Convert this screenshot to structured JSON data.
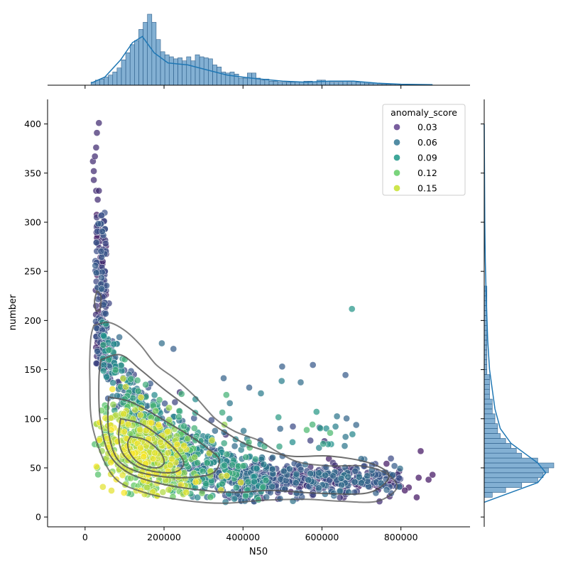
{
  "chart_data": {
    "type": "scatter",
    "title": "",
    "xlabel": "N50",
    "ylabel": "number",
    "xlim": [
      -95000,
      975000
    ],
    "ylim": [
      -10,
      425
    ],
    "x_ticks": [
      0,
      200000,
      400000,
      600000,
      800000
    ],
    "x_tick_labels": [
      "0",
      "200000",
      "400000",
      "600000",
      "800000"
    ],
    "y_ticks": [
      0,
      50,
      100,
      150,
      200,
      250,
      300,
      350,
      400
    ],
    "y_tick_labels": [
      "0",
      "50",
      "100",
      "150",
      "200",
      "250",
      "300",
      "350",
      "400"
    ],
    "grid": false,
    "legend": {
      "title": "anomaly_score",
      "placement": "upper right",
      "entries": [
        {
          "label": "0.03",
          "value": 0.03,
          "color": "#6a4c93"
        },
        {
          "label": "0.06",
          "value": 0.06,
          "color": "#3f7f9a"
        },
        {
          "label": "0.09",
          "value": 0.09,
          "color": "#2a9d8f"
        },
        {
          "label": "0.12",
          "value": 0.12,
          "color": "#6ccf6e"
        },
        {
          "label": "0.15",
          "value": 0.15,
          "color": "#c9e33a"
        }
      ]
    },
    "colormap": "viridis",
    "hist_color": "#4f8fc0",
    "kde_line_color": "#1f77b4",
    "contour_color": "#555555",
    "marginal_x": {
      "bin_width": 11000,
      "bins_start": 15000,
      "counts": [
        3,
        5,
        6,
        8,
        10,
        13,
        17,
        25,
        32,
        40,
        44,
        55,
        62,
        70,
        62,
        45,
        33,
        30,
        28,
        26,
        27,
        24,
        28,
        24,
        30,
        28,
        27,
        26,
        20,
        18,
        13,
        12,
        13,
        11,
        7,
        7,
        12,
        12,
        7,
        5,
        6,
        4,
        4,
        3,
        3,
        3,
        3,
        3,
        3,
        4,
        4,
        3,
        5,
        5,
        4,
        3,
        3,
        3,
        4,
        3,
        4,
        3,
        3,
        2,
        2,
        2,
        1,
        1,
        1,
        1,
        1,
        1,
        1
      ],
      "kde": [
        [
          15000,
          2
        ],
        [
          50000,
          8
        ],
        [
          90000,
          25
        ],
        [
          120000,
          42
        ],
        [
          145000,
          48
        ],
        [
          175000,
          32
        ],
        [
          210000,
          22
        ],
        [
          260000,
          20
        ],
        [
          310000,
          15
        ],
        [
          360000,
          10
        ],
        [
          420000,
          7
        ],
        [
          500000,
          4
        ],
        [
          560000,
          3
        ],
        [
          620000,
          4
        ],
        [
          680000,
          4
        ],
        [
          740000,
          2
        ],
        [
          800000,
          1
        ],
        [
          880000,
          0.5
        ]
      ]
    },
    "marginal_y": {
      "bin_width": 5,
      "bins_start": 15,
      "counts": [
        0,
        3,
        8,
        14,
        20,
        22,
        24,
        26,
        20,
        14,
        12,
        10,
        8,
        6,
        5,
        5,
        4,
        4,
        3,
        3,
        3,
        2,
        2,
        2,
        2,
        2,
        1,
        1,
        1,
        1,
        1,
        1,
        1,
        1,
        1,
        1,
        1,
        1,
        1,
        1,
        1,
        1,
        1,
        1,
        0,
        0,
        0,
        0,
        0,
        0,
        0,
        0
      ],
      "kde": [
        [
          15,
          0
        ],
        [
          25,
          10
        ],
        [
          35,
          20
        ],
        [
          45,
          23
        ],
        [
          55,
          20
        ],
        [
          65,
          15
        ],
        [
          75,
          10
        ],
        [
          90,
          6
        ],
        [
          110,
          4
        ],
        [
          130,
          3
        ],
        [
          150,
          2
        ],
        [
          180,
          1.3
        ],
        [
          220,
          0.8
        ],
        [
          260,
          0.4
        ],
        [
          300,
          0.2
        ],
        [
          350,
          0.1
        ],
        [
          400,
          0
        ]
      ]
    },
    "contours": [
      [
        [
          22000,
          195
        ],
        [
          60000,
          198
        ],
        [
          100000,
          190
        ],
        [
          140000,
          175
        ],
        [
          180000,
          155
        ],
        [
          230000,
          140
        ],
        [
          280000,
          122
        ],
        [
          330000,
          100
        ],
        [
          380000,
          87
        ],
        [
          440000,
          78
        ],
        [
          480000,
          68
        ],
        [
          540000,
          56
        ],
        [
          620000,
          52
        ],
        [
          700000,
          52
        ],
        [
          760000,
          45
        ],
        [
          790000,
          30
        ],
        [
          740000,
          16
        ],
        [
          650000,
          16
        ],
        [
          560000,
          18
        ],
        [
          450000,
          17
        ],
        [
          350000,
          14
        ],
        [
          250000,
          17
        ],
        [
          150000,
          25
        ],
        [
          70000,
          42
        ],
        [
          20000,
          90
        ],
        [
          12000,
          140
        ],
        [
          14000,
          180
        ],
        [
          22000,
          195
        ]
      ],
      [
        [
          40000,
          160
        ],
        [
          90000,
          165
        ],
        [
          140000,
          150
        ],
        [
          200000,
          130
        ],
        [
          260000,
          112
        ],
        [
          320000,
          95
        ],
        [
          360000,
          85
        ],
        [
          420000,
          72
        ],
        [
          520000,
          62
        ],
        [
          620000,
          62
        ],
        [
          720000,
          55
        ],
        [
          770000,
          42
        ],
        [
          720000,
          25
        ],
        [
          600000,
          24
        ],
        [
          470000,
          27
        ],
        [
          380000,
          25
        ],
        [
          280000,
          28
        ],
        [
          190000,
          34
        ],
        [
          110000,
          45
        ],
        [
          60000,
          65
        ],
        [
          38000,
          100
        ],
        [
          35000,
          140
        ],
        [
          40000,
          160
        ]
      ],
      [
        [
          60000,
          122
        ],
        [
          110000,
          118
        ],
        [
          160000,
          108
        ],
        [
          210000,
          96
        ],
        [
          260000,
          84
        ],
        [
          310000,
          70
        ],
        [
          340000,
          58
        ],
        [
          320000,
          44
        ],
        [
          250000,
          40
        ],
        [
          180000,
          42
        ],
        [
          120000,
          48
        ],
        [
          80000,
          60
        ],
        [
          60000,
          85
        ],
        [
          58000,
          110
        ],
        [
          60000,
          122
        ]
      ],
      [
        [
          90000,
          100
        ],
        [
          140000,
          95
        ],
        [
          190000,
          82
        ],
        [
          230000,
          68
        ],
        [
          250000,
          55
        ],
        [
          230000,
          46
        ],
        [
          180000,
          46
        ],
        [
          130000,
          52
        ],
        [
          95000,
          65
        ],
        [
          85000,
          82
        ],
        [
          90000,
          100
        ]
      ],
      [
        [
          115000,
          82
        ],
        [
          155000,
          78
        ],
        [
          190000,
          66
        ],
        [
          200000,
          55
        ],
        [
          180000,
          50
        ],
        [
          140000,
          54
        ],
        [
          115000,
          64
        ],
        [
          108000,
          75
        ],
        [
          115000,
          82
        ]
      ],
      [
        [
          30000,
          230
        ],
        [
          40000,
          225
        ],
        [
          38000,
          212
        ],
        [
          28000,
          210
        ],
        [
          24000,
          220
        ],
        [
          30000,
          230
        ]
      ]
    ]
  }
}
